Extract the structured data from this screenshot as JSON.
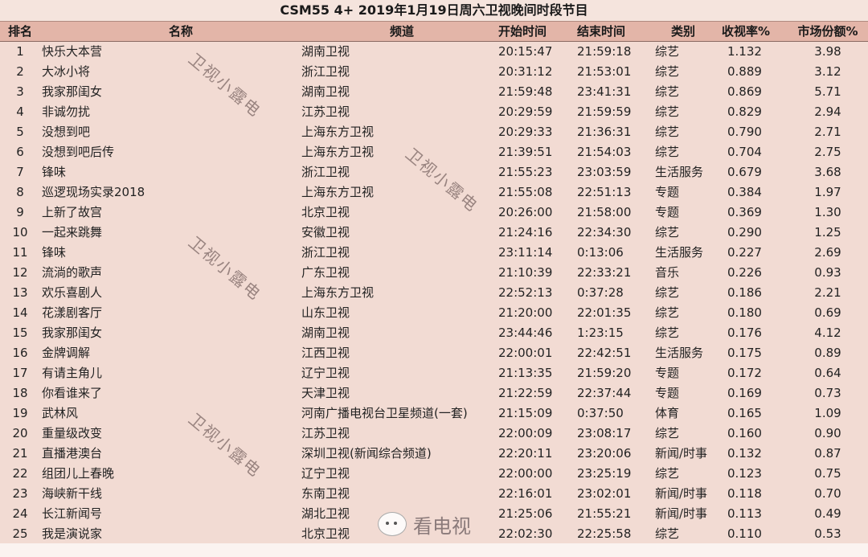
{
  "title": "CSM55 4+ 2019年1月19日周六卫视晚间时段节目",
  "headers": [
    "排名",
    "名称",
    "频道",
    "开始时间",
    "结束时间",
    "类别",
    "收视率%",
    "市场份额%"
  ],
  "rows": [
    [
      "1",
      "快乐大本营",
      "湖南卫视",
      "20:15:47",
      "21:59:18",
      "综艺",
      "1.132",
      "3.98"
    ],
    [
      "2",
      "大冰小将",
      "浙江卫视",
      "20:31:12",
      "21:53:01",
      "综艺",
      "0.889",
      "3.12"
    ],
    [
      "3",
      "我家那闺女",
      "湖南卫视",
      "21:59:48",
      "23:41:31",
      "综艺",
      "0.869",
      "5.71"
    ],
    [
      "4",
      "非诚勿扰",
      "江苏卫视",
      "20:29:59",
      "21:59:59",
      "综艺",
      "0.829",
      "2.94"
    ],
    [
      "5",
      "没想到吧",
      "上海东方卫视",
      "20:29:33",
      "21:36:31",
      "综艺",
      "0.790",
      "2.71"
    ],
    [
      "6",
      "没想到吧后传",
      "上海东方卫视",
      "21:39:51",
      "21:54:03",
      "综艺",
      "0.704",
      "2.75"
    ],
    [
      "7",
      "锋味",
      "浙江卫视",
      "21:55:23",
      "23:03:59",
      "生活服务",
      "0.679",
      "3.68"
    ],
    [
      "8",
      "巡逻现场实录2018",
      "上海东方卫视",
      "21:55:08",
      "22:51:13",
      "专题",
      "0.384",
      "1.97"
    ],
    [
      "9",
      "上新了故宫",
      "北京卫视",
      "20:26:00",
      "21:58:00",
      "专题",
      "0.369",
      "1.30"
    ],
    [
      "10",
      "一起来跳舞",
      "安徽卫视",
      "21:24:16",
      "22:34:30",
      "综艺",
      "0.290",
      "1.25"
    ],
    [
      "11",
      "锋味",
      "浙江卫视",
      "23:11:14",
      "0:13:06",
      "生活服务",
      "0.227",
      "2.69"
    ],
    [
      "12",
      "流淌的歌声",
      "广东卫视",
      "21:10:39",
      "22:33:21",
      "音乐",
      "0.226",
      "0.93"
    ],
    [
      "13",
      "欢乐喜剧人",
      "上海东方卫视",
      "22:52:13",
      "0:37:28",
      "综艺",
      "0.186",
      "2.21"
    ],
    [
      "14",
      "花漾剧客厅",
      "山东卫视",
      "21:20:00",
      "22:01:35",
      "综艺",
      "0.180",
      "0.69"
    ],
    [
      "15",
      "我家那闺女",
      "湖南卫视",
      "23:44:46",
      "1:23:15",
      "综艺",
      "0.176",
      "4.12"
    ],
    [
      "16",
      "金牌调解",
      "江西卫视",
      "22:00:01",
      "22:42:51",
      "生活服务",
      "0.175",
      "0.89"
    ],
    [
      "17",
      "有请主角儿",
      "辽宁卫视",
      "21:13:35",
      "21:59:20",
      "专题",
      "0.172",
      "0.64"
    ],
    [
      "18",
      "你看谁来了",
      "天津卫视",
      "21:22:59",
      "22:37:44",
      "专题",
      "0.169",
      "0.73"
    ],
    [
      "19",
      "武林风",
      "河南广播电视台卫星频道(一套)",
      "21:15:09",
      "0:37:50",
      "体育",
      "0.165",
      "1.09"
    ],
    [
      "20",
      "重量级改变",
      "江苏卫视",
      "22:00:09",
      "23:08:17",
      "综艺",
      "0.160",
      "0.90"
    ],
    [
      "21",
      "直播港澳台",
      "深圳卫视(新闻综合频道)",
      "22:20:11",
      "23:20:06",
      "新闻/时事",
      "0.132",
      "0.87"
    ],
    [
      "22",
      "组团儿上春晚",
      "辽宁卫视",
      "22:00:00",
      "23:25:19",
      "综艺",
      "0.123",
      "0.75"
    ],
    [
      "23",
      "海峡新干线",
      "东南卫视",
      "22:16:01",
      "23:02:01",
      "新闻/时事",
      "0.118",
      "0.70"
    ],
    [
      "24",
      "长江新闻号",
      "湖北卫视",
      "21:25:06",
      "21:55:21",
      "新闻/时事",
      "0.113",
      "0.49"
    ],
    [
      "25",
      "我是演说家",
      "北京卫视",
      "22:02:30",
      "22:25:58",
      "综艺",
      "0.110",
      "0.53"
    ]
  ],
  "watermark": "卫视小露电",
  "logo": {
    "text": "看电视",
    "icon": "wechat-icon"
  }
}
